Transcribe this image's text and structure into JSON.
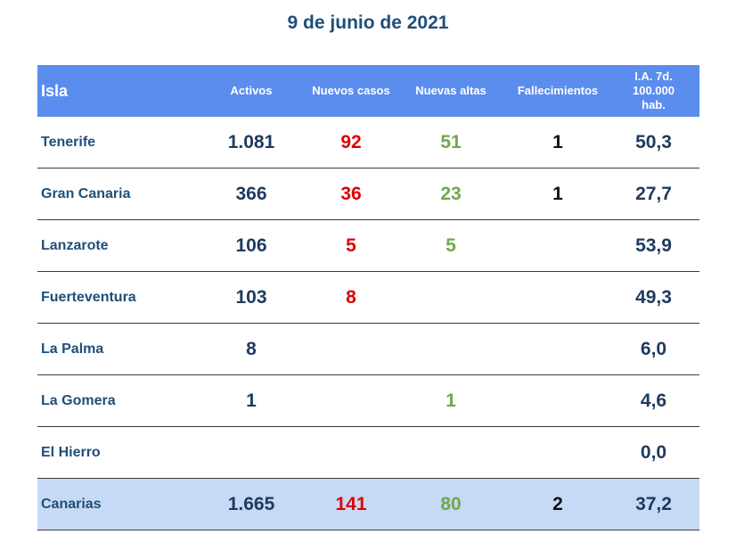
{
  "title": "9 de junio de 2021",
  "headers": {
    "isla": "Isla",
    "activos": "Activos",
    "nuevos_casos": "Nuevos casos",
    "nuevas_altas": "Nuevas altas",
    "fallecimientos": "Fallecimientos",
    "ia_line1": "I.A. 7d.",
    "ia_line2": "100.000",
    "ia_line3": "hab."
  },
  "rows": [
    {
      "isla": "Tenerife",
      "activos": "1.081",
      "nuevos_casos": "92",
      "nuevas_altas": "51",
      "fallecimientos": "1",
      "ia": "50,3"
    },
    {
      "isla": "Gran Canaria",
      "activos": "366",
      "nuevos_casos": "36",
      "nuevas_altas": "23",
      "fallecimientos": "1",
      "ia": "27,7"
    },
    {
      "isla": "Lanzarote",
      "activos": "106",
      "nuevos_casos": "5",
      "nuevas_altas": "5",
      "fallecimientos": "",
      "ia": "53,9"
    },
    {
      "isla": "Fuerteventura",
      "activos": "103",
      "nuevos_casos": "8",
      "nuevas_altas": "",
      "fallecimientos": "",
      "ia": "49,3"
    },
    {
      "isla": "La Palma",
      "activos": "8",
      "nuevos_casos": "",
      "nuevas_altas": "",
      "fallecimientos": "",
      "ia": "6,0"
    },
    {
      "isla": "La Gomera",
      "activos": "1",
      "nuevos_casos": "",
      "nuevas_altas": "1",
      "fallecimientos": "",
      "ia": "4,6"
    },
    {
      "isla": "El Hierro",
      "activos": "",
      "nuevos_casos": "",
      "nuevas_altas": "",
      "fallecimientos": "",
      "ia": "0,0"
    }
  ],
  "total": {
    "isla": "Canarias",
    "activos": "1.665",
    "nuevos_casos": "141",
    "nuevas_altas": "80",
    "fallecimientos": "2",
    "ia": "37,2"
  },
  "colors": {
    "header_bg": "#5b8def",
    "total_bg": "#c6d9f5",
    "title": "#1f4e79",
    "nuevos_casos": "#e00000",
    "nuevas_altas": "#70a84a"
  }
}
